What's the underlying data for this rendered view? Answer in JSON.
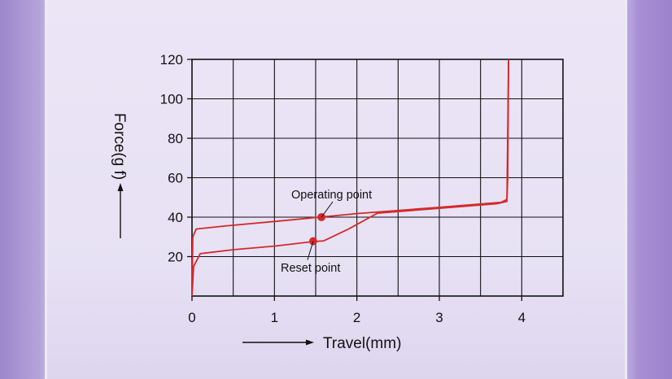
{
  "chart_data": {
    "type": "line",
    "xlabel": "Travel(mm)",
    "ylabel": "Force(g f)",
    "xlim": [
      0,
      4.5
    ],
    "ylim": [
      0,
      120
    ],
    "x_ticks": [
      "0",
      "1",
      "2",
      "3",
      "4"
    ],
    "y_ticks": [
      "20",
      "40",
      "60",
      "80",
      "100",
      "120"
    ],
    "grid": true,
    "line_color": "#d42a2a",
    "series": [
      {
        "values": [
          {
            "x": 0.0,
            "y": 0
          },
          {
            "x": 0.01,
            "y": 30
          },
          {
            "x": 0.05,
            "y": 34
          },
          {
            "x": 0.4,
            "y": 35.5
          },
          {
            "x": 1.0,
            "y": 37.8
          },
          {
            "x": 1.55,
            "y": 40
          },
          {
            "x": 2.0,
            "y": 41.8
          },
          {
            "x": 3.0,
            "y": 45
          },
          {
            "x": 3.75,
            "y": 47.5
          },
          {
            "x": 3.82,
            "y": 49
          },
          {
            "x": 3.83,
            "y": 60
          },
          {
            "x": 3.84,
            "y": 120
          }
        ]
      },
      {
        "values": [
          {
            "x": 0.0,
            "y": 0
          },
          {
            "x": 0.02,
            "y": 15
          },
          {
            "x": 0.1,
            "y": 21.5
          },
          {
            "x": 0.5,
            "y": 23.5
          },
          {
            "x": 1.0,
            "y": 25.3
          },
          {
            "x": 1.45,
            "y": 27.5
          },
          {
            "x": 1.6,
            "y": 28
          },
          {
            "x": 1.9,
            "y": 34
          },
          {
            "x": 2.25,
            "y": 42
          },
          {
            "x": 3.0,
            "y": 44.5
          },
          {
            "x": 3.7,
            "y": 46.8
          },
          {
            "x": 3.82,
            "y": 48
          },
          {
            "x": 3.84,
            "y": 120
          }
        ]
      }
    ],
    "annotations": [
      {
        "label": "Operating point",
        "x": 1.57,
        "y": 40
      },
      {
        "label": "Reset point",
        "x": 1.47,
        "y": 27.8
      }
    ]
  }
}
